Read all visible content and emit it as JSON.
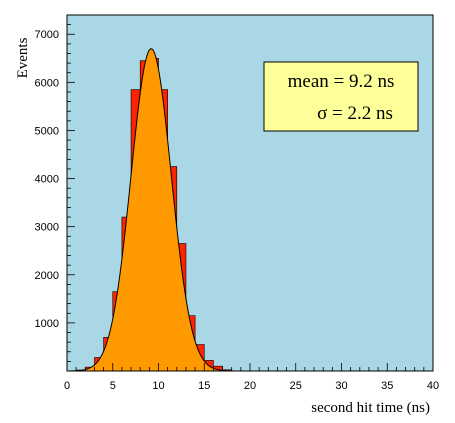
{
  "chart_data": {
    "type": "bar",
    "xlabel": "second hit time (ns)",
    "ylabel": "Events",
    "xlim": [
      0,
      40
    ],
    "ylim": [
      0,
      7400
    ],
    "x_ticks": [
      "0",
      "5",
      "10",
      "15",
      "20",
      "25",
      "30",
      "35",
      "40"
    ],
    "y_ticks": [
      "1000",
      "2000",
      "3000",
      "4000",
      "5000",
      "6000",
      "7000"
    ],
    "bin_width": 1,
    "bin_edges_start": [
      1,
      2,
      3,
      4,
      5,
      6,
      7,
      8,
      9,
      10,
      11,
      12,
      13,
      14,
      15,
      16,
      17
    ],
    "histogram_values": [
      20,
      80,
      280,
      700,
      1650,
      3200,
      5850,
      6450,
      6500,
      5850,
      4250,
      2650,
      1150,
      550,
      220,
      100,
      25
    ],
    "fit_curve": {
      "function": "gaussian",
      "peak": 6700,
      "mean_value": 9.2,
      "sigma_value": 2.2
    },
    "stats_box": {
      "mean_text": "mean = 9.2 ns",
      "sigma_text": "σ = 2.2 ns"
    },
    "colors": {
      "plot_background": "#a9d7e6",
      "histogram_fill": "#ff2200",
      "fit_fill": "#ff9900",
      "stats_box_fill": "#ffff99",
      "axis": "#000000"
    }
  }
}
